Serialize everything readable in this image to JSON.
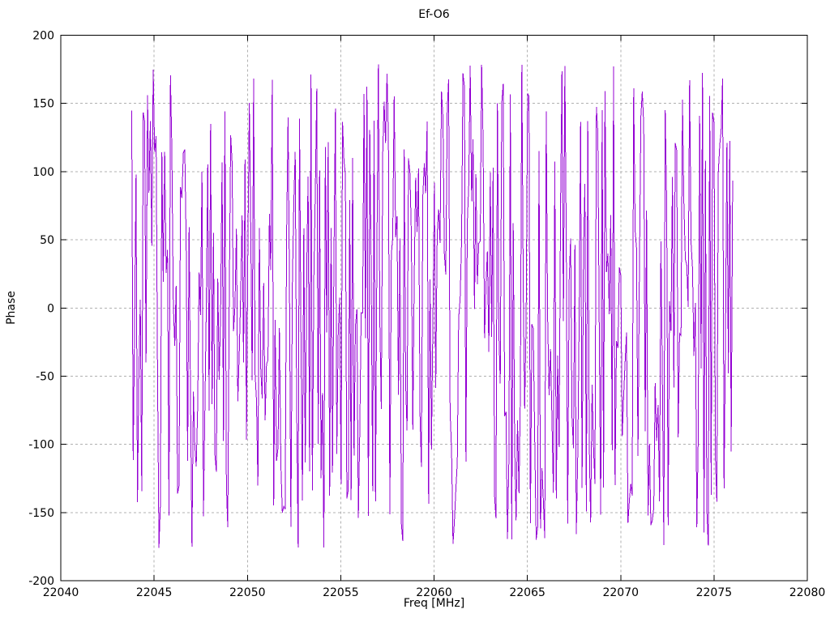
{
  "figure": {
    "title": "Ef-O6",
    "xlabel": "Freq [MHz]",
    "ylabel": "Phase"
  },
  "axes": {
    "xlim": [
      22040,
      22080
    ],
    "ylim": [
      -200,
      200
    ],
    "xticks": [
      22040,
      22045,
      22050,
      22055,
      22060,
      22065,
      22070,
      22075,
      22080
    ],
    "yticks": [
      -200,
      -150,
      -100,
      -50,
      0,
      50,
      100,
      150,
      200
    ],
    "grid": true,
    "grid_color": "#b0b0b0",
    "axis_color": "#000000",
    "background": "#ffffff"
  },
  "chart_data": {
    "type": "line",
    "title": "Ef-O6",
    "xlabel": "Freq [MHz]",
    "ylabel": "Phase",
    "xlim": [
      22040,
      22080
    ],
    "ylim": [
      -200,
      200
    ],
    "grid": true,
    "legend": false,
    "series": [
      {
        "name": "phase",
        "color": "#9400d3",
        "x_start": 22043.8,
        "x_end": 22076.0,
        "n_points": 420,
        "y_min": -180,
        "y_max": 180,
        "seed": 20450,
        "pattern": "uniform-random-wrapped-phase"
      }
    ]
  }
}
